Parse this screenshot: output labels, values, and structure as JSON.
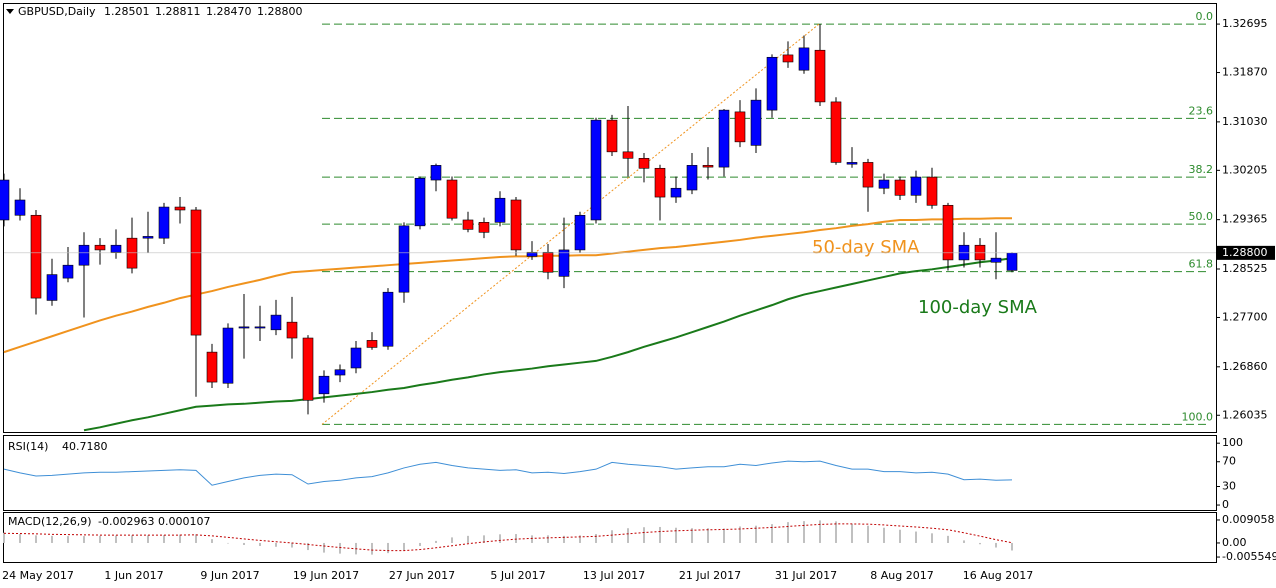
{
  "chart_data": [
    {
      "type": "candlestick",
      "title": "GBPUSD,Daily",
      "ohlc_labels": [
        "1.28501",
        "1.28811",
        "1.28470",
        "1.28800"
      ],
      "categories": [
        null,
        null,
        "24 May 2017",
        null,
        null,
        null,
        null,
        null,
        "1 Jun 2017",
        null,
        null,
        null,
        null,
        null,
        "9 Jun 2017",
        null,
        null,
        null,
        null,
        null,
        "19 Jun 2017",
        null,
        null,
        null,
        null,
        null,
        "27 Jun 2017",
        null,
        null,
        null,
        null,
        null,
        "5 Jul 2017",
        null,
        null,
        null,
        null,
        null,
        "13 Jul 2017",
        null,
        null,
        null,
        null,
        null,
        "21 Jul 2017",
        null,
        null,
        null,
        null,
        null,
        "31 Jul 2017",
        null,
        null,
        null,
        null,
        null,
        "8 Aug 2017",
        null,
        null,
        null,
        null,
        null,
        "16 Aug 2017",
        null
      ],
      "open": [
        1.2936,
        1.2944,
        1.2944,
        1.2799,
        1.2837,
        1.2859,
        1.2893,
        1.2881,
        1.2905,
        1.2905,
        1.2905,
        1.2958,
        1.2953,
        1.2711,
        1.2658,
        1.2752,
        1.2752,
        1.2749,
        1.2762,
        1.2735,
        1.264,
        1.2672,
        1.2684,
        1.2731,
        1.2721,
        1.2813,
        1.2926,
        1.3004,
        1.3004,
        1.2936,
        1.2932,
        1.2932,
        1.297,
        1.2874,
        1.2881,
        1.284,
        1.2885,
        1.2936,
        1.3106,
        1.3052,
        1.3041,
        1.3024,
        1.2975,
        1.2987,
        1.3029,
        1.3026,
        1.312,
        1.3063,
        1.3123,
        1.3217,
        1.3191,
        1.3225,
        1.3137,
        1.3031,
        1.3034,
        1.299,
        1.3004,
        1.2978,
        1.3009,
        1.2961,
        1.2868,
        1.2893,
        1.2864,
        1.28501
      ],
      "high": [
        1.3015,
        1.299,
        1.2953,
        1.287,
        1.289,
        1.2915,
        1.2905,
        1.292,
        1.294,
        1.295,
        1.2965,
        1.2975,
        1.2958,
        1.2725,
        1.276,
        1.281,
        1.279,
        1.28,
        1.2805,
        1.274,
        1.268,
        1.269,
        1.273,
        1.2745,
        1.282,
        1.2932,
        1.301,
        1.3032,
        1.301,
        1.295,
        1.294,
        1.2985,
        1.2975,
        1.29,
        1.2895,
        1.294,
        1.295,
        1.311,
        1.3115,
        1.313,
        1.305,
        1.303,
        1.301,
        1.305,
        1.306,
        1.3125,
        1.314,
        1.316,
        1.3218,
        1.324,
        1.325,
        1.32695,
        1.3145,
        1.306,
        1.304,
        1.3015,
        1.301,
        1.302,
        1.3025,
        1.2965,
        1.2915,
        1.2905,
        1.2915,
        1.28811
      ],
      "low": [
        1.2925,
        1.2935,
        1.2775,
        1.279,
        1.283,
        1.277,
        1.286,
        1.287,
        1.2845,
        1.288,
        1.2895,
        1.293,
        1.2635,
        1.265,
        1.265,
        1.27,
        1.273,
        1.274,
        1.27,
        1.2605,
        1.2625,
        1.266,
        1.2675,
        1.2715,
        1.2715,
        1.2795,
        1.292,
        1.2985,
        1.2935,
        1.2915,
        1.2905,
        1.2925,
        1.2875,
        1.2868,
        1.2835,
        1.282,
        1.288,
        1.293,
        1.3045,
        1.301,
        1.3,
        1.2935,
        1.2965,
        1.298,
        1.3005,
        1.301,
        1.306,
        1.305,
        1.311,
        1.3195,
        1.3185,
        1.313,
        1.303,
        1.3025,
        1.295,
        1.298,
        1.297,
        1.2965,
        1.2955,
        1.285,
        1.2855,
        1.2855,
        1.2835,
        1.2847
      ],
      "close": [
        1.3004,
        1.297,
        1.2803,
        1.2843,
        1.2859,
        1.2893,
        1.2885,
        1.2893,
        1.2854,
        1.2908,
        1.2958,
        1.2953,
        1.274,
        1.266,
        1.2752,
        1.2754,
        1.2754,
        1.2774,
        1.2735,
        1.2629,
        1.267,
        1.2681,
        1.2718,
        1.2719,
        1.2813,
        1.2926,
        1.3007,
        1.3029,
        1.2939,
        1.292,
        1.2915,
        1.2973,
        1.2885,
        1.2881,
        1.2847,
        1.2885,
        1.2944,
        1.3106,
        1.3052,
        1.3041,
        1.3024,
        1.2975,
        1.299,
        1.3029,
        1.3026,
        1.3123,
        1.3069,
        1.314,
        1.3213,
        1.3205,
        1.3229,
        1.3137,
        1.3034,
        1.3034,
        1.2992,
        1.3004,
        1.2978,
        1.3009,
        1.2961,
        1.2868,
        1.2893,
        1.2868,
        1.2871,
        1.288
      ],
      "up_color": "#0000ff",
      "down_color": "#ff0000",
      "ylim": [
        1.2575,
        1.3302
      ],
      "yticks": [
        1.32695,
        {
          "value": 1.3187,
          "label": "1.31870"
        },
        {
          "value": 1.3103,
          "label": "1.31030"
        },
        1.30205,
        1.29365,
        1.28525,
        {
          "value": 1.277,
          "label": "1.27700"
        },
        {
          "value": 1.2686,
          "label": "1.26860"
        },
        1.26035
      ],
      "last_price": {
        "value": 1.288,
        "label": "1.28800"
      },
      "fib_levels": [
        {
          "value": 1.32695,
          "label": "0.0"
        },
        {
          "value": 1.3109,
          "label": "23.6"
        },
        {
          "value": 1.3009,
          "label": "38.2"
        },
        {
          "value": 1.2929,
          "label": "50.0"
        },
        {
          "value": 1.2848,
          "label": "61.8"
        },
        {
          "value": 1.2588,
          "label": "100.0"
        }
      ],
      "fib_color": "#2e8b2e",
      "series": [
        {
          "name": "50-day SMA",
          "color": "#f0931e",
          "values": [
            1.2711,
            1.272,
            1.2729,
            1.2738,
            1.2747,
            1.2756,
            1.2765,
            1.2773,
            1.278,
            1.2788,
            1.2795,
            1.2803,
            1.2809,
            1.2815,
            1.2822,
            1.2828,
            1.2834,
            1.2841,
            1.2847,
            1.2849,
            1.2851,
            1.2853,
            1.2855,
            1.2857,
            1.2859,
            1.2861,
            1.2863,
            1.2865,
            1.2867,
            1.2869,
            1.2871,
            1.2873,
            1.2874,
            1.2874,
            1.2875,
            1.2875,
            1.2876,
            1.2876,
            1.2879,
            1.2882,
            1.2885,
            1.2888,
            1.289,
            1.2893,
            1.2896,
            1.2899,
            1.2902,
            1.2906,
            1.2909,
            1.2912,
            1.2915,
            1.2919,
            1.2922,
            1.2926,
            1.2929,
            1.2933,
            1.2936,
            1.2936,
            1.2937,
            1.2937,
            1.2938,
            1.2938,
            1.2939,
            1.2939
          ]
        },
        {
          "name": "100-day SMA",
          "color": "#1a7a1a",
          "values": [
            null,
            null,
            null,
            null,
            null,
            1.2578,
            1.2583,
            1.2589,
            1.2595,
            1.26,
            1.2606,
            1.2612,
            1.2618,
            1.262,
            1.2622,
            1.2623,
            1.2625,
            1.2627,
            1.2628,
            1.2631,
            1.2634,
            1.2637,
            1.264,
            1.2643,
            1.2647,
            1.265,
            1.2655,
            1.2659,
            1.2664,
            1.2668,
            1.2673,
            1.2677,
            1.268,
            1.2683,
            1.2687,
            1.269,
            1.2693,
            1.2696,
            1.2703,
            1.2711,
            1.272,
            1.2728,
            1.2736,
            1.2745,
            1.2754,
            1.2763,
            1.2773,
            1.2782,
            1.2791,
            1.2801,
            1.2809,
            1.2815,
            1.2821,
            1.2827,
            1.2833,
            1.2839,
            1.2845,
            1.2849,
            1.2852,
            1.2856,
            1.286,
            1.2864,
            1.2867,
            1.2871
          ]
        }
      ]
    },
    {
      "type": "line",
      "title": "RSI(14)",
      "last_label": "40.7180",
      "color": "#3f8fd6",
      "values": [
        58,
        52,
        47,
        48,
        50,
        52,
        53,
        53,
        54,
        55,
        56,
        57,
        56,
        32,
        38,
        44,
        48,
        50,
        49,
        34,
        38,
        40,
        44,
        46,
        52,
        60,
        66,
        69,
        64,
        60,
        58,
        56,
        57,
        52,
        53,
        51,
        54,
        58,
        69,
        66,
        64,
        62,
        58,
        60,
        62,
        62,
        66,
        64,
        68,
        71,
        70,
        71,
        64,
        58,
        58,
        54,
        54,
        52,
        53,
        50,
        41,
        42,
        40,
        40.718
      ],
      "ylim": [
        -8,
        110
      ],
      "yticks": [
        100,
        70,
        30,
        0
      ]
    },
    {
      "type": "macd",
      "title": "MACD(12,26,9)",
      "last_labels": [
        "-0.002963",
        "0.000107"
      ],
      "hist_color": "#c0c0c0",
      "signal_color": "#c00000",
      "values": [
        0.004,
        0.0035,
        0.003,
        0.0028,
        0.0027,
        0.0027,
        0.0028,
        0.0029,
        0.003,
        0.003,
        0.0031,
        0.0033,
        0.0034,
        0.0015,
        -0.0002,
        -0.0008,
        -0.0012,
        -0.0015,
        -0.0018,
        -0.0028,
        -0.0038,
        -0.0042,
        -0.0045,
        -0.0046,
        -0.004,
        -0.003,
        -0.0012,
        0.0008,
        0.0022,
        0.0028,
        0.003,
        0.0034,
        0.0035,
        0.003,
        0.003,
        0.0028,
        0.003,
        0.0035,
        0.005,
        0.0058,
        0.0062,
        0.0063,
        0.006,
        0.0058,
        0.0058,
        0.0057,
        0.0065,
        0.0068,
        0.0074,
        0.0082,
        0.0086,
        0.0089,
        0.0085,
        0.0075,
        0.0068,
        0.006,
        0.0052,
        0.0045,
        0.0038,
        0.0028,
        0.001,
        -0.0005,
        -0.0018,
        -0.002963
      ],
      "signal": [
        0.0038,
        0.0037,
        0.0036,
        0.0034,
        0.0033,
        0.0032,
        0.0031,
        0.0031,
        0.0031,
        0.0031,
        0.0031,
        0.0031,
        0.0032,
        0.0028,
        0.0022,
        0.0016,
        0.001,
        0.0005,
        0.0,
        -0.0006,
        -0.0012,
        -0.0018,
        -0.0023,
        -0.0028,
        -0.003,
        -0.003,
        -0.0026,
        -0.0019,
        -0.0011,
        -0.0003,
        0.0004,
        0.001,
        0.0015,
        0.0018,
        0.002,
        0.0022,
        0.0024,
        0.0026,
        0.0031,
        0.0036,
        0.0041,
        0.0045,
        0.0048,
        0.005,
        0.0052,
        0.0053,
        0.0055,
        0.0058,
        0.0061,
        0.0065,
        0.0069,
        0.0073,
        0.0075,
        0.0075,
        0.0074,
        0.0071,
        0.0067,
        0.0063,
        0.0058,
        0.0052,
        0.004,
        0.0027,
        0.0013,
        0.000107
      ],
      "ylim": [
        -0.0075,
        0.0118
      ],
      "yticks": [
        0.009058,
        {
          "value": 0,
          "label": "0.00"
        },
        -0.005549
      ]
    }
  ]
}
